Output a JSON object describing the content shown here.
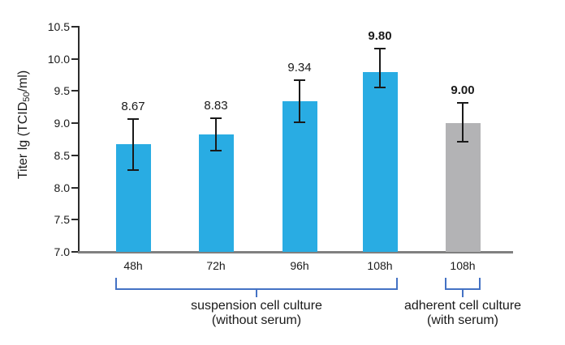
{
  "figure": {
    "background": "#ffffff"
  },
  "chart_data": {
    "type": "bar",
    "title": "",
    "ylabel": {
      "pre": "Titer lg (TCID",
      "sub": "50",
      "post": "/ml)"
    },
    "xlabel": "",
    "ylim": [
      7.0,
      10.5
    ],
    "yticks": [
      "10.5",
      "10.0",
      "9.5",
      "9.0",
      "8.5",
      "8.0",
      "7.5",
      "7.0"
    ],
    "grid": false,
    "legend_position": "none",
    "categories": [
      "48h",
      "72h",
      "96h",
      "108h",
      "108h"
    ],
    "bars": [
      {
        "category": "48h",
        "value": 8.67,
        "value_label": "8.67",
        "bold_label": false,
        "err_hi": 9.07,
        "err_lo": 8.27,
        "color_key": "suspension_bar"
      },
      {
        "category": "72h",
        "value": 8.83,
        "value_label": "8.83",
        "bold_label": false,
        "err_hi": 9.08,
        "err_lo": 8.58,
        "color_key": "suspension_bar"
      },
      {
        "category": "96h",
        "value": 9.34,
        "value_label": "9.34",
        "bold_label": false,
        "err_hi": 9.67,
        "err_lo": 9.02,
        "color_key": "suspension_bar"
      },
      {
        "category": "108h",
        "value": 9.8,
        "value_label": "9.80",
        "bold_label": true,
        "err_hi": 10.16,
        "err_lo": 9.56,
        "color_key": "suspension_bar"
      },
      {
        "category": "108h",
        "value": 9.0,
        "value_label": "9.00",
        "bold_label": true,
        "err_hi": 9.32,
        "err_lo": 8.71,
        "color_key": "adherent_bar"
      }
    ],
    "groups": [
      {
        "label_line1": "suspension cell culture",
        "label_line2": "(without serum)",
        "first_bar": 0,
        "last_bar": 3
      },
      {
        "label_line1": "adherent cell culture",
        "label_line2": "(with serum)",
        "first_bar": 4,
        "last_bar": 4
      }
    ],
    "colors": {
      "suspension_bar": "#29ace3",
      "adherent_bar": "#b3b3b5",
      "bracket": "#4472c4",
      "error_bar": "#1a1a1a",
      "y_axis": "#2b2b2b",
      "x_axis": "#808080",
      "text": "#1a1a1a"
    }
  }
}
